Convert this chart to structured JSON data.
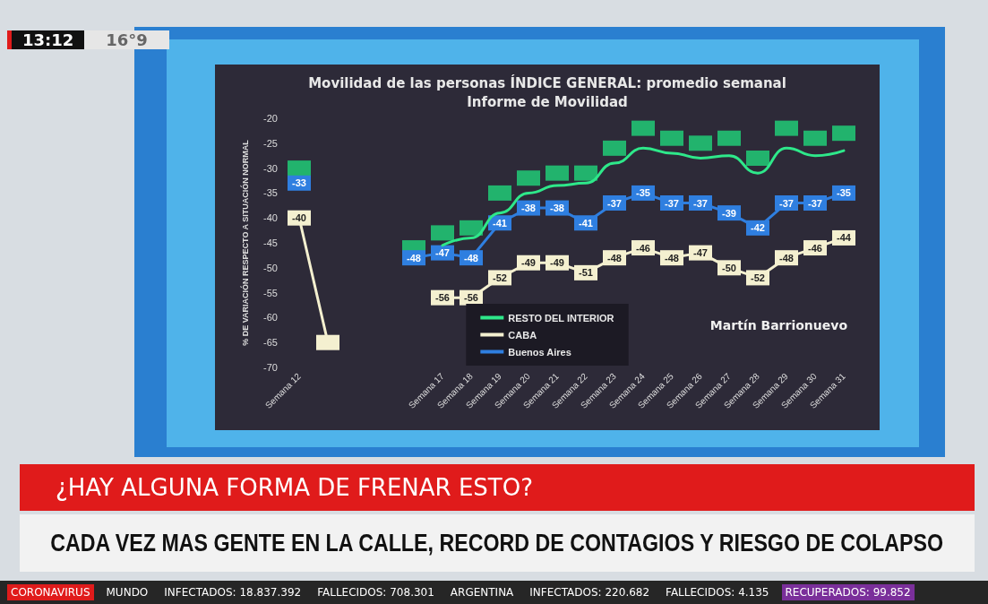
{
  "chart_data": {
    "type": "line",
    "title": "Movilidad de las personas ÍNDICE GENERAL: promedio semanal",
    "subtitle": "Informe de Movilidad",
    "ylabel": "% DE VARIACIÓN RESPECTO A SITUACIÓN NORMAL",
    "categories": [
      "Semana 12",
      null,
      null,
      null,
      null,
      "Semana 17",
      "Semana 18",
      "Semana 19",
      "Semana 20",
      "Semana 21",
      "Semana 22",
      "Semana 23",
      "Semana 24",
      "Semana 25",
      "Semana 26",
      "Semana 27",
      "Semana 28",
      "Semana 29",
      "Semana 30",
      "Semana 31"
    ],
    "series": [
      {
        "type": "scatter",
        "color": "#1fd67a",
        "marker": "square",
        "values": [
          -30,
          null,
          null,
          null,
          -46,
          -43,
          -42,
          -35,
          -32,
          -31,
          -31,
          -26,
          -22,
          -24,
          -25,
          -24,
          -28,
          -22,
          -24,
          -23
        ]
      },
      {
        "name": "RESTO DEL INTERIOR",
        "color": "#2ee88a",
        "marker": "none",
        "x": [
          "Semana 17",
          "Semana 18",
          "Semana 19",
          "Semana 20",
          "Semana 21",
          "Semana 22",
          "Semana 23",
          "Semana 24",
          "Semana 25",
          "Semana 26",
          "Semana 27",
          "Semana 28",
          "Semana 29",
          "Semana 30",
          "Semana 31"
        ],
        "values": [
          -45.5,
          -44,
          -39,
          -35,
          -33.5,
          -33,
          -29,
          -26,
          -27,
          -28,
          -27.5,
          -31,
          -26,
          -27.5,
          -26.5
        ]
      },
      {
        "name": "CABA",
        "color": "#f4f0d0",
        "marker": "square",
        "values": [
          -40,
          -65,
          null,
          null,
          null,
          -56,
          -56,
          -52,
          -49,
          -49,
          -51,
          -48,
          -46,
          -48,
          -47,
          -50,
          -52,
          -48,
          -46,
          -44
        ],
        "value_labels": [
          "-40",
          null,
          null,
          null,
          null,
          "-56",
          "-56",
          "-52",
          "-49",
          "-49",
          "-51",
          "-48",
          "-46",
          "-48",
          "-47",
          "-50",
          "-52",
          "-48",
          "-46",
          "-44"
        ]
      },
      {
        "name": "Buenos Aires",
        "color": "#2f7fe0",
        "marker": "square",
        "values": [
          -33,
          null,
          null,
          null,
          -48,
          -47,
          -48,
          -41,
          -38,
          -38,
          -41,
          -37,
          -35,
          -37,
          -37,
          -39,
          -42,
          -37,
          -37,
          -35
        ],
        "value_labels": [
          "-33",
          null,
          null,
          null,
          "-48",
          "-47",
          "-48",
          "-41",
          "-38",
          "-38",
          "-41",
          "-37",
          "-35",
          "-37",
          "-37",
          "-39",
          "-42",
          "-37",
          "-37",
          "-35"
        ]
      }
    ],
    "ylim": [
      -70,
      -20
    ],
    "yticks": [
      -70,
      -65,
      -60,
      -55,
      -50,
      -45,
      -40,
      -35,
      -30,
      -25,
      -20
    ],
    "legend": "bottom",
    "annotations": [
      "Martín Barrionuevo",
      "¿HAY ALGUNA FORMA DE FRENAR ESTO?",
      "CADA VEZ MAS GENTE EN LA CALLE, RECORD DE CONTAGIOS Y RIESGO DE COLAPSO",
      "13:12",
      "16°9",
      "CORONAVIRUS",
      "MUNDO",
      "INFECTADOS: 18.837.392",
      "FALLECIDOS: 708.301",
      "ARGENTINA",
      "INFECTADOS: 220.682",
      "FALLECIDOS: 4.135",
      "RECUPERADOS: 99.852"
    ]
  }
}
